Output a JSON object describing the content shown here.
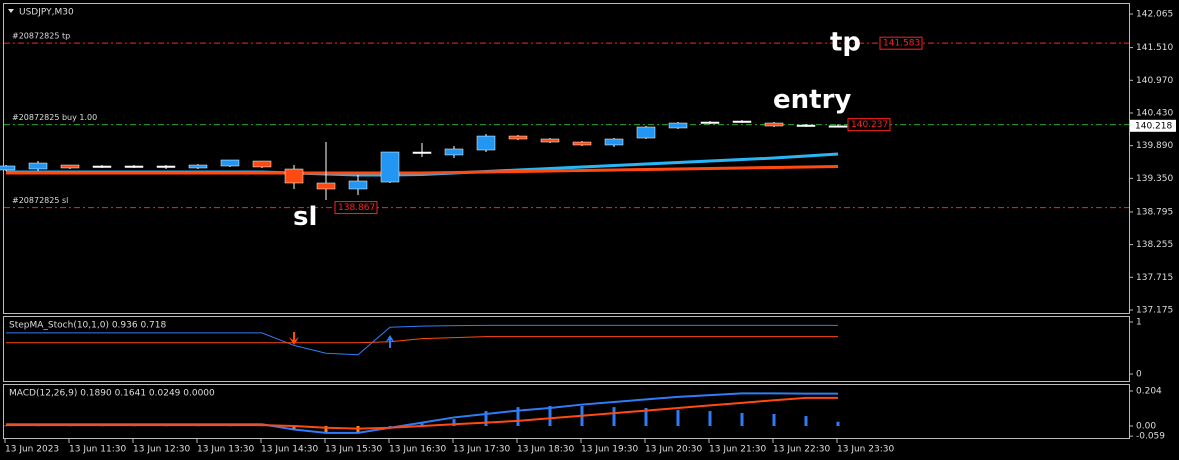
{
  "chart_data": [
    {
      "type": "candlestick",
      "title": "USDJPY,M30",
      "categories": [
        "13 Jun 2023",
        null,
        "13 Jun 11:30",
        null,
        "13 Jun 12:30",
        null,
        "13 Jun 13:30",
        null,
        "13 Jun 14:30",
        null,
        "13 Jun 15:30",
        null,
        "13 Jun 16:30",
        null,
        "13 Jun 17:30",
        null,
        "13 Jun 18:30",
        null,
        "13 Jun 19:30",
        null,
        "13 Jun 20:30",
        null,
        "13 Jun 21:30",
        null,
        "13 Jun 22:30",
        null,
        "13 Jun 23:30"
      ],
      "open": [
        139.488,
        139.504,
        139.57,
        139.538,
        139.538,
        139.538,
        139.521,
        139.554,
        139.636,
        139.504,
        139.273,
        139.174,
        139.289,
        139.768,
        139.736,
        139.818,
        140.049,
        140.0,
        139.95,
        139.901,
        140.016,
        140.182,
        140.264,
        140.281,
        140.264,
        140.215,
        140.215
      ],
      "high": [
        139.57,
        139.636,
        139.57,
        139.57,
        139.57,
        139.57,
        139.585,
        139.653,
        139.636,
        139.57,
        139.95,
        139.405,
        139.785,
        139.934,
        139.884,
        140.082,
        140.066,
        140.016,
        139.966,
        140.016,
        140.215,
        140.281,
        140.297,
        140.314,
        140.281,
        140.248,
        140.248
      ],
      "low": [
        139.471,
        139.471,
        139.504,
        139.521,
        139.521,
        139.504,
        139.504,
        139.538,
        139.521,
        139.174,
        138.992,
        139.075,
        139.273,
        139.702,
        139.686,
        139.785,
        139.984,
        139.934,
        139.884,
        139.868,
        140.0,
        140.165,
        140.248,
        140.264,
        140.198,
        140.198,
        140.198
      ],
      "close": [
        139.554,
        139.603,
        139.521,
        139.554,
        139.554,
        139.554,
        139.57,
        139.653,
        139.538,
        139.273,
        139.174,
        139.306,
        139.785,
        139.785,
        139.835,
        140.049,
        140.0,
        139.95,
        139.901,
        140.0,
        140.198,
        140.264,
        140.281,
        140.297,
        140.215,
        140.231,
        140.218
      ],
      "bull_color": "#2196f3",
      "bear_color": "#ff4a12",
      "series": [
        {
          "color": "#29b6f6",
          "values": [
            139.455,
            139.455,
            139.455,
            139.455,
            139.455,
            139.455,
            139.455,
            139.455,
            139.455,
            139.438,
            139.422,
            139.405,
            139.405,
            139.413,
            139.438,
            139.463,
            139.488,
            139.513,
            139.537,
            139.562,
            139.587,
            139.612,
            139.636,
            139.661,
            139.686,
            139.719,
            139.752
          ]
        },
        {
          "color": "#ff4a12",
          "values": [
            139.438,
            139.438,
            139.438,
            139.438,
            139.438,
            139.438,
            139.438,
            139.438,
            139.438,
            139.438,
            139.438,
            139.438,
            139.438,
            139.438,
            139.446,
            139.455,
            139.463,
            139.471,
            139.48,
            139.488,
            139.496,
            139.504,
            139.513,
            139.521,
            139.529,
            139.537,
            139.546
          ]
        }
      ],
      "levels": [
        {
          "label": "#20872825 tp",
          "value": 141.583,
          "tag": "tp",
          "color": "#ff2020"
        },
        {
          "label": "#20872825 buy 1.00",
          "value": 140.237,
          "tag": "entry",
          "color": "#22aa22"
        },
        {
          "label": "#20872825 sl",
          "value": 138.867,
          "tag": "sl",
          "color": "#ff2020"
        }
      ],
      "current_price": 140.218,
      "ylim": [
        137.125,
        142.247
      ],
      "yticks": [
        142.065,
        {
          "value": 141.51,
          "label": "141.510"
        },
        {
          "value": 140.97,
          "label": "140.970"
        },
        {
          "value": 140.43,
          "label": "140.430"
        },
        {
          "value": 139.89,
          "label": "139.890"
        },
        {
          "value": 139.35,
          "label": "139.350"
        },
        138.795,
        138.255,
        137.715,
        137.175
      ]
    },
    {
      "type": "line",
      "title": "StepMA_Stoch(10,1,0) 0.936 0.718",
      "series": [
        {
          "color": "#2f7df6",
          "values": [
            0.79,
            0.79,
            0.79,
            0.79,
            0.79,
            0.79,
            0.79,
            0.79,
            0.79,
            0.55,
            0.4,
            0.37,
            0.9,
            0.92,
            0.93,
            0.936,
            0.936,
            0.936,
            0.936,
            0.936,
            0.936,
            0.936,
            0.936,
            0.936,
            0.936,
            0.936,
            0.936
          ]
        },
        {
          "color": "#ff4a12",
          "values": [
            0.6,
            0.6,
            0.6,
            0.6,
            0.6,
            0.6,
            0.6,
            0.6,
            0.6,
            0.6,
            0.6,
            0.6,
            0.62,
            0.68,
            0.7,
            0.718,
            0.718,
            0.718,
            0.718,
            0.718,
            0.718,
            0.718,
            0.718,
            0.718,
            0.718,
            0.718,
            0.718
          ]
        }
      ],
      "arrows": [
        {
          "at": 9,
          "direction": "down",
          "color": "#ff4a12"
        },
        {
          "at": 12,
          "direction": "up",
          "color": "#2f7df6"
        }
      ],
      "ylim": [
        -0.115,
        1.096
      ],
      "yticks": [
        1,
        0
      ]
    },
    {
      "type": "macd",
      "title": "MACD(12,26,9) 0.1890 0.1641 0.0249 0.0000",
      "histogram": [
        0.005,
        0.005,
        0.005,
        0.005,
        0.005,
        0.005,
        0.005,
        0.005,
        0.005,
        -0.02,
        -0.04,
        -0.04,
        0.0,
        0.02,
        0.04,
        0.087,
        0.11,
        0.117,
        0.117,
        0.11,
        0.105,
        0.093,
        0.087,
        0.076,
        0.07,
        0.058,
        0.0249
      ],
      "up_color": "#2f7df6",
      "down_color": "#ff8c1a",
      "series": [
        {
          "color": "#2f7df6",
          "values": [
            0.01,
            0.01,
            0.01,
            0.01,
            0.01,
            0.01,
            0.01,
            0.01,
            0.01,
            -0.02,
            -0.04,
            -0.04,
            -0.01,
            0.02,
            0.05,
            0.07,
            0.09,
            0.105,
            0.125,
            0.14,
            0.155,
            0.17,
            0.18,
            0.19,
            0.19,
            0.189,
            0.189
          ]
        },
        {
          "color": "#ff4a12",
          "values": [
            0.005,
            0.005,
            0.005,
            0.005,
            0.005,
            0.005,
            0.005,
            0.005,
            0.005,
            0.0,
            -0.01,
            -0.015,
            -0.01,
            0.0,
            0.01,
            0.02,
            0.03,
            0.045,
            0.06,
            0.075,
            0.09,
            0.105,
            0.12,
            0.135,
            0.15,
            0.164,
            0.164
          ]
        }
      ],
      "ylim": [
        -0.064,
        0.239
      ],
      "yticks": [
        0.204,
        {
          "value": 0,
          "label": "0.00"
        },
        -0.059
      ]
    }
  ]
}
